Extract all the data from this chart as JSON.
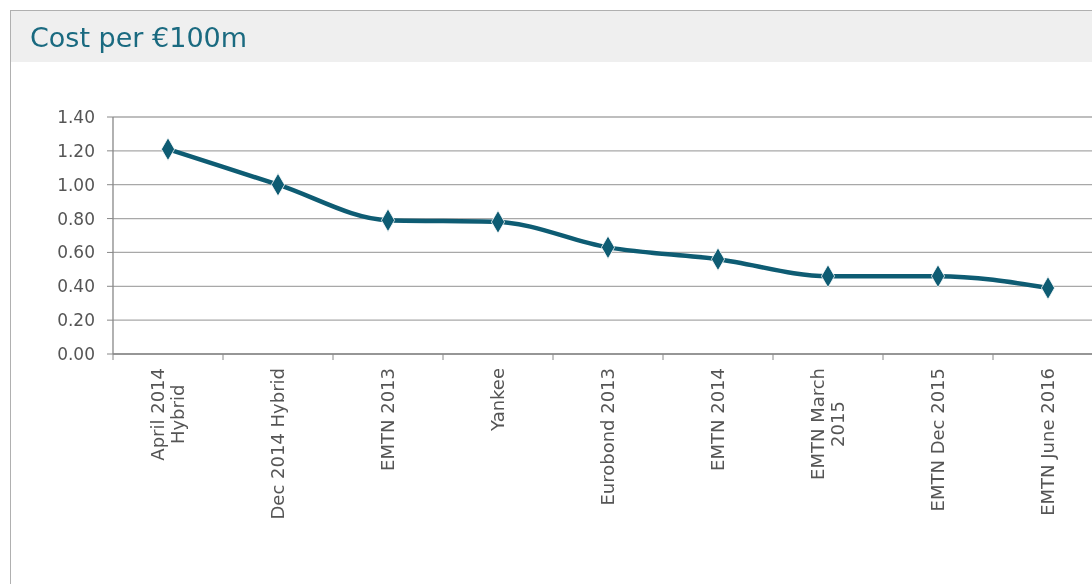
{
  "chart_data": {
    "type": "line",
    "title": "Cost per €100m",
    "categories": [
      "April 2014 Hybrid",
      "Dec 2014 Hybrid",
      "EMTN 2013",
      "Yankee",
      "Eurobond 2013",
      "EMTN 2014",
      "EMTN March 2015",
      "EMTN Dec 2015",
      "EMTN June 2016"
    ],
    "series": [
      {
        "color": "#0e5c73",
        "values": [
          1.21,
          1.0,
          0.79,
          0.78,
          0.63,
          0.56,
          0.46,
          0.46,
          0.39
        ]
      }
    ],
    "ylim": [
      0,
      1.4
    ],
    "yticks": [
      {
        "value": 0,
        "label": "0.00"
      },
      {
        "value": 0.2,
        "label": "0.20"
      },
      {
        "value": 0.4,
        "label": "0.40"
      },
      {
        "value": 0.6,
        "label": "0.60"
      },
      {
        "value": 0.8,
        "label": "0.80"
      },
      {
        "value": 1.0,
        "label": "1.00"
      },
      {
        "value": 1.2,
        "label": "1.20"
      },
      {
        "value": 1.4,
        "label": "1.40"
      }
    ],
    "grid": "y",
    "marker": "diamond",
    "line_style": "solid"
  }
}
